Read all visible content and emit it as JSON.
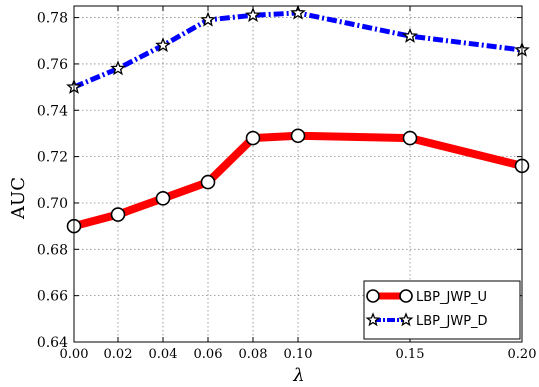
{
  "chart_data": {
    "type": "line",
    "x": [
      0.0,
      0.02,
      0.04,
      0.06,
      0.08,
      0.1,
      0.15,
      0.2
    ],
    "x_tick_labels": [
      "0.00",
      "0.02",
      "0.04",
      "0.06",
      "0.08",
      "0.10",
      "0.15",
      "0.20"
    ],
    "y_tick_labels": [
      "0.64",
      "0.66",
      "0.68",
      "0.70",
      "0.72",
      "0.74",
      "0.76",
      "0.78"
    ],
    "y_ticks": [
      0.64,
      0.66,
      0.68,
      0.7,
      0.72,
      0.74,
      0.76,
      0.78
    ],
    "ylim": [
      0.64,
      0.785
    ],
    "xlabel": "λ",
    "ylabel": "AUC",
    "grid": true,
    "legend_position": "bottom-right",
    "series": [
      {
        "name": "LBP_JWP_U",
        "values": [
          0.69,
          0.695,
          0.702,
          0.709,
          0.728,
          0.729,
          0.728,
          0.716
        ],
        "color": "#ff0000",
        "marker": "circle",
        "line_style": "solid"
      },
      {
        "name": "LBP_JWP_D",
        "values": [
          0.75,
          0.758,
          0.768,
          0.779,
          0.781,
          0.782,
          0.772,
          0.766
        ],
        "color": "#0000ff",
        "marker": "star",
        "line_style": "dash-dot"
      }
    ]
  }
}
